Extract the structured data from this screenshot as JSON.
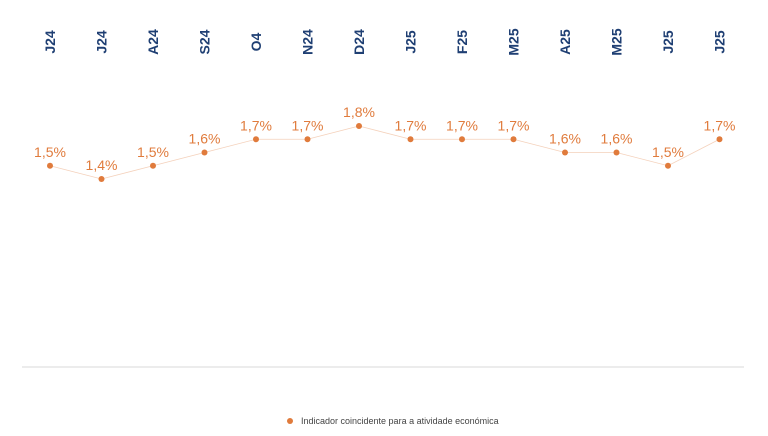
{
  "chart_data": {
    "type": "line",
    "categories": [
      "J24",
      "J24",
      "A24",
      "S24",
      "O4",
      "N24",
      "D24",
      "J25",
      "F25",
      "M25",
      "A25",
      "M25",
      "J25",
      "J25"
    ],
    "series": [
      {
        "name": "Indicador coincidente para a atividade económica",
        "values": [
          1.5,
          1.4,
          1.5,
          1.6,
          1.7,
          1.7,
          1.8,
          1.7,
          1.7,
          1.7,
          1.6,
          1.6,
          1.5,
          1.7
        ],
        "labels": [
          "1,5%",
          "1,4%",
          "1,5%",
          "1,6%",
          "1,7%",
          "1,7%",
          "1,8%",
          "1,7%",
          "1,7%",
          "1,7%",
          "1,6%",
          "1,6%",
          "1,5%",
          "1,7%"
        ],
        "color": "#e07b3c"
      }
    ],
    "title": "",
    "xlabel": "",
    "ylabel": "",
    "legend_position": "bottom",
    "grid": false
  },
  "colors": {
    "category_text": "#1f3f73",
    "series": "#e07b3c",
    "axis_line": "#d9d9d9",
    "legend_text": "#444444"
  }
}
